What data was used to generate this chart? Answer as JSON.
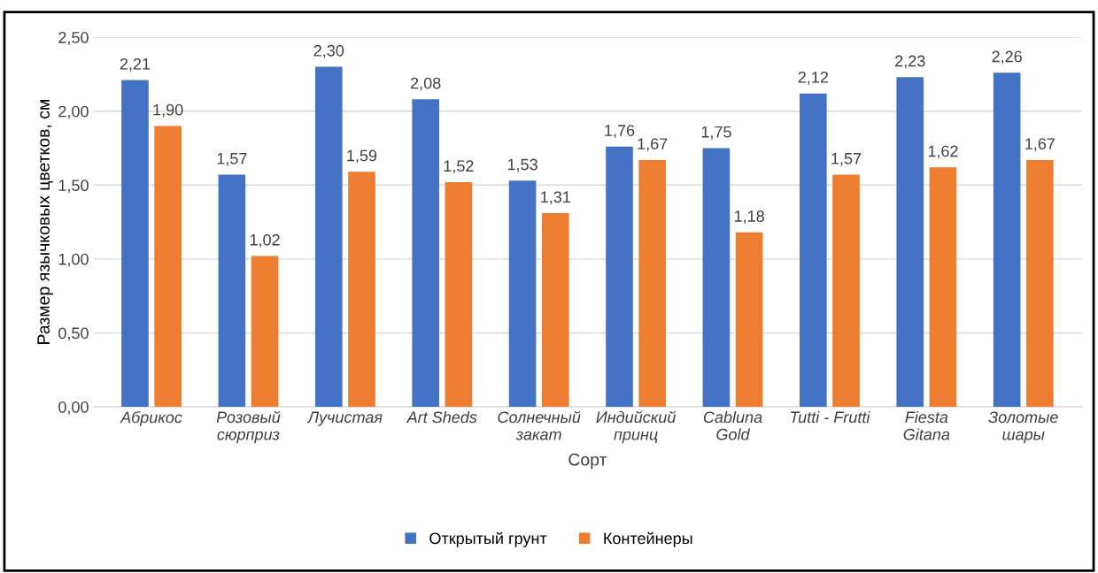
{
  "chart_data": {
    "type": "bar",
    "xlabel": "Сорт",
    "ylabel": "Размер язычковых цветков, см",
    "categories": [
      "Абрикос",
      "Розовый\nсюрприз",
      "Лучистая",
      "Art Sheds",
      "Солнечный\nзакат",
      "Индийский\nпринц",
      "Cabluna\nGold",
      "Tutti - Frutti",
      "Fiesta\nGitana",
      "Золотые\nшары"
    ],
    "series": [
      {
        "name": "Открытый грунт",
        "color": "#4472c4",
        "values": [
          2.21,
          1.57,
          2.3,
          2.08,
          1.53,
          1.76,
          1.75,
          2.12,
          2.23,
          2.26
        ],
        "value_labels": [
          "2,21",
          "1,57",
          "2,30",
          "2,08",
          "1,53",
          "1,76",
          "1,75",
          "2,12",
          "2,23",
          "2,26"
        ]
      },
      {
        "name": "Контейнеры",
        "color": "#ed7d31",
        "values": [
          1.9,
          1.02,
          1.59,
          1.52,
          1.31,
          1.67,
          1.18,
          1.57,
          1.62,
          1.67
        ],
        "value_labels": [
          "1,90",
          "1,02",
          "1,59",
          "1,52",
          "1,31",
          "1,67",
          "1,18",
          "1,57",
          "1,62",
          "1,67"
        ]
      }
    ],
    "ylim": [
      0,
      2.5
    ],
    "yticks": [
      {
        "value": 0,
        "label": "0,00"
      },
      {
        "value": 0.5,
        "label": "0,50"
      },
      {
        "value": 1,
        "label": "1,00"
      },
      {
        "value": 1.5,
        "label": "1,50"
      },
      {
        "value": 2,
        "label": "2,00"
      },
      {
        "value": 2.5,
        "label": "2,50"
      }
    ],
    "grid": "y",
    "legend": "bottom"
  }
}
